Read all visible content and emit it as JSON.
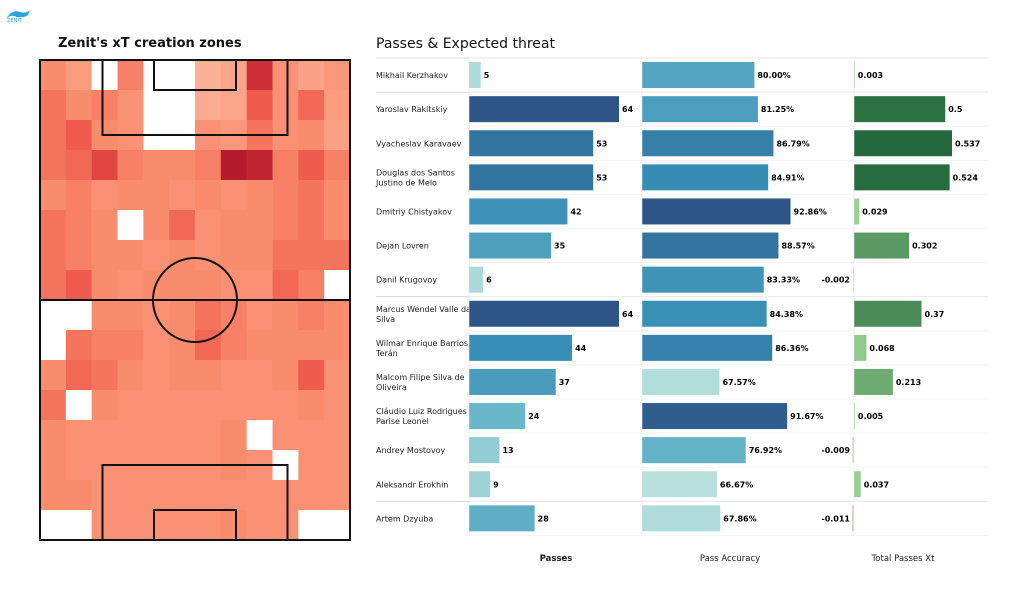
{
  "pitch": {
    "title": "Zenit's xT creation zones"
  },
  "table": {
    "title": "Passes & Expected threat",
    "columns": [
      "Passes",
      "Pass Accuracy",
      "Total Passes Xt"
    ]
  },
  "chart_data": [
    {
      "type": "heatmap",
      "title": "Zenit's xT creation zones",
      "rows": 16,
      "cols": 12,
      "values": [
        [
          0.45,
          0.3,
          0.0,
          0.5,
          0.0,
          0.0,
          0.1,
          0.2,
          0.85,
          0.4,
          0.25,
          0.35
        ],
        [
          0.55,
          0.45,
          0.5,
          0.4,
          0.0,
          0.0,
          0.15,
          0.2,
          0.65,
          0.4,
          0.6,
          0.3
        ],
        [
          0.55,
          0.65,
          0.45,
          0.4,
          0.0,
          0.0,
          0.4,
          0.35,
          0.55,
          0.4,
          0.45,
          0.25
        ],
        [
          0.55,
          0.6,
          0.75,
          0.5,
          0.45,
          0.45,
          0.5,
          0.95,
          0.9,
          0.5,
          0.65,
          0.5
        ],
        [
          0.45,
          0.5,
          0.4,
          0.45,
          0.45,
          0.4,
          0.45,
          0.4,
          0.45,
          0.5,
          0.55,
          0.45
        ],
        [
          0.55,
          0.5,
          0.45,
          0.0,
          0.45,
          0.6,
          0.4,
          0.45,
          0.45,
          0.5,
          0.55,
          0.45
        ],
        [
          0.55,
          0.5,
          0.45,
          0.45,
          0.4,
          0.45,
          0.4,
          0.45,
          0.45,
          0.55,
          0.55,
          0.55
        ],
        [
          0.55,
          0.65,
          0.45,
          0.4,
          0.45,
          0.45,
          0.45,
          0.4,
          0.4,
          0.6,
          0.5,
          0.0
        ],
        [
          0.0,
          0.0,
          0.45,
          0.45,
          0.4,
          0.45,
          0.55,
          0.5,
          0.4,
          0.45,
          0.5,
          0.45
        ],
        [
          0.0,
          0.55,
          0.5,
          0.5,
          0.4,
          0.45,
          0.6,
          0.5,
          0.45,
          0.45,
          0.45,
          0.45
        ],
        [
          0.45,
          0.6,
          0.55,
          0.45,
          0.4,
          0.45,
          0.45,
          0.4,
          0.4,
          0.45,
          0.65,
          0.4
        ],
        [
          0.55,
          0.0,
          0.45,
          0.4,
          0.4,
          0.4,
          0.4,
          0.4,
          0.4,
          0.4,
          0.45,
          0.4
        ],
        [
          0.45,
          0.4,
          0.4,
          0.4,
          0.4,
          0.4,
          0.4,
          0.45,
          0.0,
          0.4,
          0.4,
          0.4
        ],
        [
          0.45,
          0.4,
          0.4,
          0.4,
          0.4,
          0.4,
          0.4,
          0.45,
          0.4,
          0.0,
          0.4,
          0.4
        ],
        [
          0.45,
          0.45,
          0.4,
          0.4,
          0.4,
          0.4,
          0.4,
          0.4,
          0.4,
          0.4,
          0.4,
          0.4
        ],
        [
          0.0,
          0.0,
          0.4,
          0.4,
          0.4,
          0.4,
          0.4,
          0.45,
          0.4,
          0.4,
          0.0,
          0.0
        ]
      ]
    },
    {
      "type": "bar",
      "title": "Passes",
      "categories": [
        "Mikhail Kerzhakov",
        "Yaroslav Rakitskiy",
        "Vyacheslav Karavaev",
        "Douglas dos Santos Justino de Melo",
        "Dmitriy Chistyakov",
        "Dejan Lovren",
        "Danil Krugovoy",
        "Marcus Wendel Valle da Silva",
        "Wilmar Enrique Barrios Terán",
        "Malcom Filipe Silva de Oliveira",
        "Cláudio Luiz Rodrigues Parise Leonel",
        "Andrey Mostovoy",
        "Aleksandr Erokhin",
        "Artem Dzyuba"
      ],
      "values": [
        5,
        64,
        53,
        53,
        42,
        35,
        6,
        64,
        44,
        37,
        24,
        13,
        9,
        28
      ],
      "labels": [
        "5",
        "64",
        "53",
        "53",
        "42",
        "35",
        "6",
        "64",
        "44",
        "37",
        "24",
        "13",
        "9",
        "28"
      ],
      "xlim": [
        0,
        64
      ]
    },
    {
      "type": "bar",
      "title": "Pass Accuracy",
      "categories": [
        "Mikhail Kerzhakov",
        "Yaroslav Rakitskiy",
        "Vyacheslav Karavaev",
        "Douglas dos Santos Justino de Melo",
        "Dmitriy Chistyakov",
        "Dejan Lovren",
        "Danil Krugovoy",
        "Marcus Wendel Valle da Silva",
        "Wilmar Enrique Barrios Terán",
        "Malcom Filipe Silva de Oliveira",
        "Cláudio Luiz Rodrigues Parise Leonel",
        "Andrey Mostovoy",
        "Aleksandr Erokhin",
        "Artem Dzyuba"
      ],
      "values": [
        80.0,
        81.25,
        86.79,
        84.91,
        92.86,
        88.57,
        83.33,
        84.38,
        86.36,
        67.57,
        91.67,
        76.92,
        66.67,
        67.86
      ],
      "labels": [
        "80.00%",
        "81.25%",
        "86.79%",
        "84.91%",
        "92.86%",
        "88.57%",
        "83.33%",
        "84.38%",
        "86.36%",
        "67.57%",
        "91.67%",
        "76.92%",
        "66.67%",
        "67.86%"
      ],
      "xlim": [
        0,
        100
      ]
    },
    {
      "type": "bar",
      "title": "Total Passes Xt",
      "categories": [
        "Mikhail Kerzhakov",
        "Yaroslav Rakitskiy",
        "Vyacheslav Karavaev",
        "Douglas dos Santos Justino de Melo",
        "Dmitriy Chistyakov",
        "Dejan Lovren",
        "Danil Krugovoy",
        "Marcus Wendel Valle da Silva",
        "Wilmar Enrique Barrios Terán",
        "Malcom Filipe Silva de Oliveira",
        "Cláudio Luiz Rodrigues Parise Leonel",
        "Andrey Mostovoy",
        "Aleksandr Erokhin",
        "Artem Dzyuba"
      ],
      "values": [
        0.003,
        0.5,
        0.537,
        0.524,
        0.029,
        0.302,
        -0.002,
        0.37,
        0.068,
        0.213,
        0.005,
        -0.009,
        0.037,
        -0.011
      ],
      "labels": [
        "0.003",
        "0.5",
        "0.537",
        "0.524",
        "0.029",
        "0.302",
        "-0.002",
        "0.37",
        "0.068",
        "0.213",
        "0.005",
        "-0.009",
        "0.037",
        "-0.011"
      ],
      "xlim": [
        0,
        0.537
      ]
    }
  ]
}
